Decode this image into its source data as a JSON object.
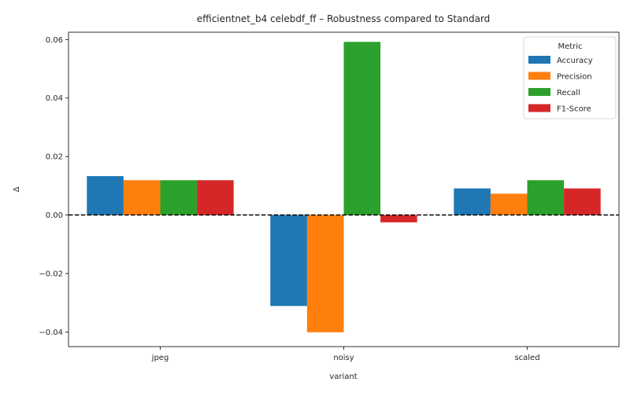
{
  "chart_data": {
    "type": "bar",
    "title": "efficientnet_b4 celebdf_ff – Robustness compared to Standard",
    "xlabel": "variant",
    "ylabel": "Δ",
    "categories": [
      "jpeg",
      "noisy",
      "scaled"
    ],
    "ylim": [
      -0.045,
      0.0625
    ],
    "yticks": [
      -0.04,
      -0.02,
      0.0,
      0.02,
      0.04,
      0.06
    ],
    "ytick_labels": [
      "−0.04",
      "−0.02",
      "0.00",
      "0.02",
      "0.04",
      "0.06"
    ],
    "reference_line": {
      "y": 0.0,
      "style": "dashed",
      "color": "#000000"
    },
    "legend": {
      "title": "Metric",
      "position": "top-right"
    },
    "series": [
      {
        "name": "Accuracy",
        "color": "#1f77b4",
        "values": [
          0.0133,
          -0.0311,
          0.0091
        ]
      },
      {
        "name": "Precision",
        "color": "#ff7f0e",
        "values": [
          0.0119,
          -0.0401,
          0.0073
        ]
      },
      {
        "name": "Recall",
        "color": "#2ca02c",
        "values": [
          0.0119,
          0.0592,
          0.0119
        ]
      },
      {
        "name": "F1-Score",
        "color": "#d62728",
        "values": [
          0.0119,
          -0.0025,
          0.0091
        ]
      }
    ]
  }
}
